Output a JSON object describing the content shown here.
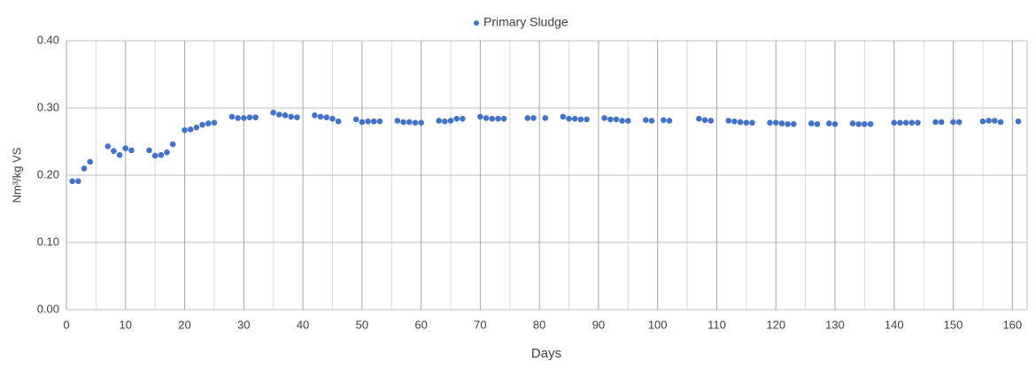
{
  "chart_data": {
    "type": "scatter",
    "x_label": "Days",
    "y_label": "Nm³/kg VS",
    "series": [
      {
        "name": "Primary Sludge",
        "color": "#4472c4",
        "x": [
          1,
          2,
          3,
          4,
          7,
          8,
          9,
          10,
          11,
          14,
          15,
          16,
          17,
          18,
          20,
          21,
          22,
          23,
          24,
          25,
          28,
          29,
          30,
          31,
          32,
          35,
          36,
          37,
          38,
          39,
          42,
          43,
          44,
          45,
          46,
          49,
          50,
          51,
          52,
          53,
          56,
          57,
          58,
          59,
          60,
          63,
          64,
          65,
          66,
          67,
          70,
          71,
          72,
          73,
          74,
          78,
          79,
          81,
          84,
          85,
          86,
          87,
          88,
          91,
          92,
          93,
          94,
          95,
          98,
          99,
          101,
          102,
          107,
          108,
          109,
          112,
          113,
          114,
          115,
          116,
          119,
          120,
          121,
          122,
          123,
          126,
          127,
          129,
          130,
          133,
          134,
          135,
          136,
          140,
          141,
          142,
          143,
          144,
          147,
          148,
          150,
          151,
          155,
          156,
          157,
          158,
          161
        ],
        "values": [
          0.191,
          0.191,
          0.21,
          0.22,
          0.243,
          0.236,
          0.23,
          0.24,
          0.237,
          0.237,
          0.229,
          0.23,
          0.234,
          0.246,
          0.267,
          0.268,
          0.271,
          0.275,
          0.277,
          0.278,
          0.287,
          0.285,
          0.285,
          0.286,
          0.286,
          0.293,
          0.29,
          0.289,
          0.287,
          0.286,
          0.289,
          0.287,
          0.286,
          0.284,
          0.28,
          0.283,
          0.279,
          0.28,
          0.28,
          0.28,
          0.281,
          0.279,
          0.279,
          0.278,
          0.278,
          0.281,
          0.28,
          0.281,
          0.284,
          0.284,
          0.287,
          0.285,
          0.284,
          0.284,
          0.284,
          0.285,
          0.285,
          0.285,
          0.287,
          0.284,
          0.284,
          0.283,
          0.283,
          0.285,
          0.283,
          0.283,
          0.281,
          0.281,
          0.282,
          0.281,
          0.282,
          0.281,
          0.284,
          0.282,
          0.281,
          0.281,
          0.28,
          0.279,
          0.278,
          0.278,
          0.278,
          0.278,
          0.277,
          0.276,
          0.276,
          0.277,
          0.276,
          0.277,
          0.276,
          0.277,
          0.276,
          0.276,
          0.276,
          0.278,
          0.278,
          0.278,
          0.278,
          0.278,
          0.279,
          0.279,
          0.279,
          0.279,
          0.28,
          0.281,
          0.281,
          0.279,
          0.28
        ]
      }
    ],
    "xlim": [
      0,
      162.5
    ],
    "xticks": [
      0,
      10,
      20,
      30,
      40,
      50,
      60,
      70,
      80,
      90,
      100,
      110,
      120,
      130,
      140,
      150,
      160
    ],
    "xminorticks": [
      5,
      15,
      25,
      35,
      45,
      55,
      65,
      75,
      85,
      95,
      105,
      115,
      125,
      135,
      145,
      155
    ],
    "ylim": [
      0,
      0.4
    ],
    "yticks": [
      {
        "value": 0,
        "label": "0.00"
      },
      {
        "value": 0.1,
        "label": "0.10"
      },
      {
        "value": 0.2,
        "label": "0.20"
      },
      {
        "value": 0.3,
        "label": "0.30"
      },
      {
        "value": 0.4,
        "label": "0.40"
      }
    ],
    "grid": true,
    "legend": "top"
  }
}
